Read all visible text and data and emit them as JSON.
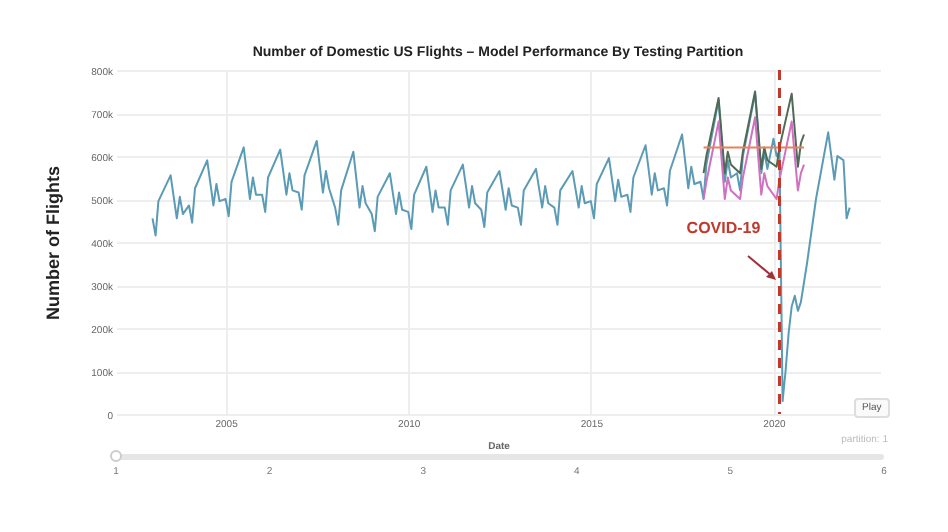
{
  "chart_data": {
    "type": "line",
    "title": "Number of Domestic US Flights – Model Performance By Testing Partition",
    "xlabel": "Date",
    "ylabel": "Number of Flights",
    "xlim": [
      "2002-01",
      "2022-12"
    ],
    "xticks": [
      {
        "value": "2005",
        "label": "2005"
      },
      {
        "value": "2010",
        "label": "2010"
      },
      {
        "value": "2015",
        "label": "2015"
      },
      {
        "value": "2020",
        "label": "2020"
      }
    ],
    "ylim": [
      0,
      800000
    ],
    "yticks": [
      {
        "value": 0,
        "label": "0"
      },
      {
        "value": 100000,
        "label": "100k"
      },
      {
        "value": 200000,
        "label": "200k"
      },
      {
        "value": 300000,
        "label": "300k"
      },
      {
        "value": 400000,
        "label": "400k"
      },
      {
        "value": 500000,
        "label": "500k"
      },
      {
        "value": 600000,
        "label": "600k"
      },
      {
        "value": 700000,
        "label": "700k"
      },
      {
        "value": 800000,
        "label": "800k"
      }
    ],
    "grid": true,
    "line_style": "solid",
    "series": [
      {
        "color": "#5b9bb5",
        "x": [
          "2003-01",
          "2003-02",
          "2003-03",
          "2003-07",
          "2003-09",
          "2003-10",
          "2003-11",
          "2004-01",
          "2004-02",
          "2004-03",
          "2004-07",
          "2004-09",
          "2004-10",
          "2004-11",
          "2005-01",
          "2005-02",
          "2005-03",
          "2005-07",
          "2005-09",
          "2005-10",
          "2005-11",
          "2006-01",
          "2006-02",
          "2006-03",
          "2006-07",
          "2006-09",
          "2006-10",
          "2006-11",
          "2007-01",
          "2007-02",
          "2007-03",
          "2007-07",
          "2007-09",
          "2007-10",
          "2007-11",
          "2008-01",
          "2008-02",
          "2008-03",
          "2008-07",
          "2008-09",
          "2008-10",
          "2008-11",
          "2009-01",
          "2009-02",
          "2009-03",
          "2009-07",
          "2009-09",
          "2009-10",
          "2009-11",
          "2010-01",
          "2010-02",
          "2010-03",
          "2010-07",
          "2010-09",
          "2010-10",
          "2010-11",
          "2011-01",
          "2011-02",
          "2011-03",
          "2011-07",
          "2011-09",
          "2011-10",
          "2011-11",
          "2012-01",
          "2012-02",
          "2012-03",
          "2012-07",
          "2012-09",
          "2012-10",
          "2012-11",
          "2013-01",
          "2013-02",
          "2013-03",
          "2013-07",
          "2013-09",
          "2013-10",
          "2013-11",
          "2014-01",
          "2014-02",
          "2014-03",
          "2014-07",
          "2014-09",
          "2014-10",
          "2014-11",
          "2015-01",
          "2015-02",
          "2015-03",
          "2015-07",
          "2015-09",
          "2015-10",
          "2015-11",
          "2016-01",
          "2016-02",
          "2016-03",
          "2016-07",
          "2016-09",
          "2016-10",
          "2016-11",
          "2017-01",
          "2017-02",
          "2017-03",
          "2017-07",
          "2017-09",
          "2017-10",
          "2017-11",
          "2018-01",
          "2018-02",
          "2018-03",
          "2018-07",
          "2018-09",
          "2018-10",
          "2018-11",
          "2019-01",
          "2019-02",
          "2019-03",
          "2019-07",
          "2019-09",
          "2019-10",
          "2019-11",
          "2020-01",
          "2020-02",
          "2020-03",
          "2020-04",
          "2020-05",
          "2020-06",
          "2020-07",
          "2020-08",
          "2020-09",
          "2020-10",
          "2020-12",
          "2021-03",
          "2021-07",
          "2021-09",
          "2021-10",
          "2021-11",
          "2021-12",
          "2022-01",
          "2022-02"
        ],
        "values": [
          455000,
          415000,
          495000,
          555000,
          455000,
          505000,
          465000,
          485000,
          445000,
          525000,
          590000,
          485000,
          535000,
          495000,
          500000,
          460000,
          540000,
          620000,
          500000,
          550000,
          510000,
          510000,
          470000,
          550000,
          615000,
          510000,
          560000,
          520000,
          515000,
          475000,
          555000,
          635000,
          515000,
          565000,
          525000,
          480000,
          440000,
          520000,
          610000,
          480000,
          530000,
          490000,
          465000,
          425000,
          505000,
          560000,
          465000,
          515000,
          475000,
          470000,
          430000,
          510000,
          575000,
          470000,
          520000,
          480000,
          480000,
          440000,
          520000,
          580000,
          480000,
          530000,
          490000,
          475000,
          435000,
          515000,
          565000,
          475000,
          525000,
          485000,
          480000,
          440000,
          520000,
          570000,
          480000,
          530000,
          490000,
          480000,
          440000,
          520000,
          565000,
          480000,
          530000,
          490000,
          495000,
          455000,
          535000,
          595000,
          495000,
          545000,
          505000,
          510000,
          470000,
          550000,
          625000,
          510000,
          560000,
          520000,
          525000,
          485000,
          565000,
          650000,
          525000,
          575000,
          535000,
          540000,
          500000,
          580000,
          730000,
          540000,
          590000,
          550000,
          560000,
          520000,
          600000,
          745000,
          560000,
          610000,
          570000,
          640000,
          600000,
          610000,
          30000,
          100000,
          190000,
          250000,
          275000,
          240000,
          260000,
          350000,
          500000,
          655000,
          545000,
          600000,
          595000,
          590000,
          455000,
          480000
        ]
      },
      {
        "color": "#4f6b58",
        "x": [
          "2018-02",
          "2018-03",
          "2018-07",
          "2018-09",
          "2018-10",
          "2018-11",
          "2019-02",
          "2019-03",
          "2019-07",
          "2019-09",
          "2019-10",
          "2019-11",
          "2020-02",
          "2020-03",
          "2020-07",
          "2020-09",
          "2020-10",
          "2020-11"
        ],
        "values": [
          560000,
          600000,
          735000,
          560000,
          610000,
          580000,
          560000,
          610000,
          750000,
          570000,
          620000,
          590000,
          575000,
          620000,
          745000,
          575000,
          630000,
          650000
        ]
      },
      {
        "color": "#d070c0",
        "x": [
          "2018-02",
          "2018-03",
          "2018-07",
          "2018-09",
          "2018-10",
          "2018-11",
          "2019-02",
          "2019-03",
          "2019-07",
          "2019-09",
          "2019-10",
          "2019-11",
          "2020-02",
          "2020-03",
          "2020-07",
          "2020-09",
          "2020-10",
          "2020-11"
        ],
        "values": [
          500000,
          540000,
          680000,
          500000,
          550000,
          520000,
          500000,
          550000,
          690000,
          510000,
          560000,
          530000,
          500000,
          545000,
          680000,
          520000,
          560000,
          580000
        ]
      },
      {
        "color": "#e8825a",
        "x": [
          "2018-02",
          "2020-11"
        ],
        "values": [
          620000,
          620000
        ]
      }
    ],
    "ref_lines": [
      {
        "axis": "x",
        "value": "2020-03",
        "color": "#c0392b",
        "line_style": "dashed"
      }
    ],
    "annotations": [
      {
        "text": "COVID-19",
        "x": "2020-03",
        "y": 310000
      },
      "Play",
      "partition: 1",
      "1",
      "2",
      "3",
      "4",
      "5",
      "6"
    ]
  }
}
